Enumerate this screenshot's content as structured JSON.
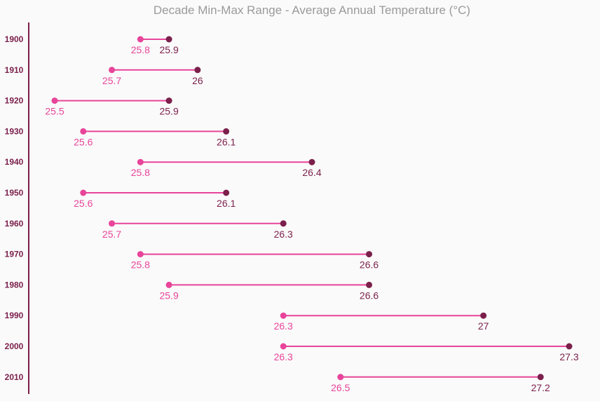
{
  "chart_data": {
    "type": "dumbbell",
    "title": "Decade Min-Max Range - Average Annual Temperature (°C)",
    "xlabel": "",
    "ylabel": "",
    "xlim": [
      25.5,
      27.3
    ],
    "grid": false,
    "legend": "none",
    "categories": [
      "1900",
      "1910",
      "1920",
      "1930",
      "1940",
      "1950",
      "1960",
      "1970",
      "1980",
      "1990",
      "2000",
      "2010"
    ],
    "series": [
      {
        "values": [
          25.8,
          25.7,
          25.5,
          25.6,
          25.8,
          25.6,
          25.7,
          25.8,
          25.9,
          26.3,
          26.3,
          26.5
        ]
      },
      {
        "values": [
          25.9,
          26,
          25.9,
          26.1,
          26.4,
          26.1,
          26.3,
          26.6,
          26.6,
          27,
          27.3,
          27.2
        ]
      }
    ],
    "min_labels": [
      "25.8",
      "25.7",
      "25.5",
      "25.6",
      "25.8",
      "25.6",
      "25.7",
      "25.8",
      "25.9",
      "26.3",
      "26.3",
      "26.5"
    ],
    "max_labels": [
      "25.9",
      "26",
      "25.9",
      "26.1",
      "26.4",
      "26.1",
      "26.3",
      "26.6",
      "26.6",
      "27",
      "27.3",
      "27.2"
    ],
    "colors": {
      "min": "#e8449a",
      "max": "#7b1f4b",
      "line": "#e8449a",
      "axis": "#7b1f4b",
      "title": "#9a9a9a",
      "background": "#fafafa"
    }
  }
}
